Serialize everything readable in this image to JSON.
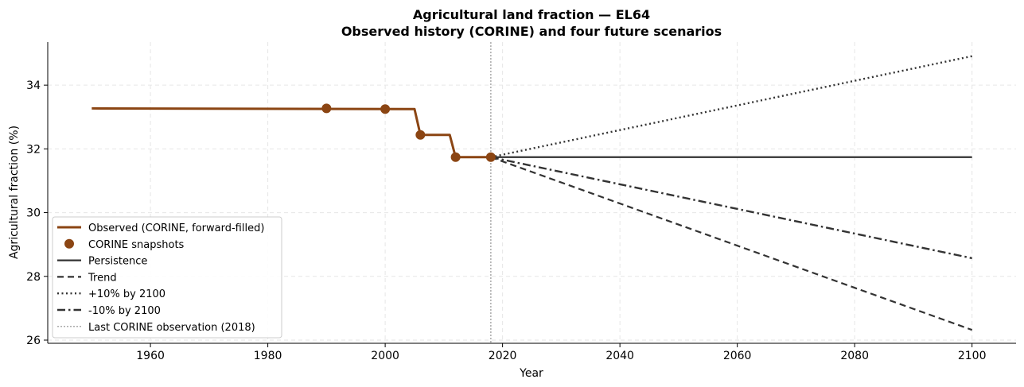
{
  "chart_data": {
    "type": "line",
    "title": "Agricultural land fraction — EL64",
    "subtitle": "Observed history (CORINE) and four future scenarios",
    "xlabel": "Year",
    "ylabel": "Agricultural fraction (%)",
    "xlim": [
      1942.5,
      2107.5
    ],
    "ylim": [
      25.9,
      35.35
    ],
    "xticks": [
      1960,
      1980,
      2000,
      2020,
      2040,
      2060,
      2080,
      2100
    ],
    "yticks": [
      26,
      28,
      30,
      32,
      34
    ],
    "grid": true,
    "legend_position": "lower-left",
    "series": [
      {
        "name": "Observed (CORINE, forward-filled)",
        "style": "solid-thick",
        "color": "#8B4513",
        "x": [
          1950,
          2005,
          2006,
          2011,
          2012,
          2018
        ],
        "y": [
          33.27,
          33.25,
          32.44,
          32.44,
          31.74,
          31.74
        ]
      },
      {
        "name": "CORINE snapshots",
        "style": "markers",
        "color": "#8B4513",
        "x": [
          1990,
          2000,
          2006,
          2012,
          2018
        ],
        "y": [
          33.27,
          33.25,
          32.44,
          31.74,
          31.74
        ]
      },
      {
        "name": "Persistence",
        "style": "solid",
        "color": "#333333",
        "x": [
          2018,
          2100
        ],
        "y": [
          31.74,
          31.74
        ]
      },
      {
        "name": "Trend",
        "style": "dashed",
        "color": "#333333",
        "x": [
          2018,
          2100
        ],
        "y": [
          31.74,
          26.32
        ]
      },
      {
        "name": "+10% by 2100",
        "style": "dotted",
        "color": "#333333",
        "x": [
          2018,
          2100
        ],
        "y": [
          31.74,
          34.91
        ]
      },
      {
        "name": "-10% by 2100",
        "style": "dashdot",
        "color": "#333333",
        "x": [
          2018,
          2100
        ],
        "y": [
          31.74,
          28.57
        ]
      }
    ],
    "vline": {
      "name": "Last CORINE observation (2018)",
      "x": 2018,
      "color": "#aaaaaa",
      "style": "dotted"
    }
  }
}
